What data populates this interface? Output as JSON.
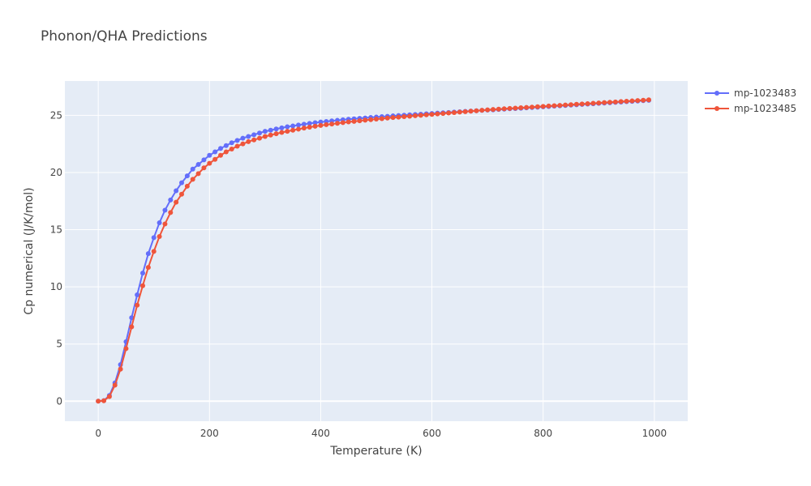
{
  "chart_data": {
    "type": "line",
    "title": "Phonon/QHA Predictions",
    "xlabel": "Temperature (K)",
    "ylabel": "Cp numerical (J/K/mol)",
    "xlim": [
      -60,
      1060
    ],
    "ylim": [
      -1.75,
      28
    ],
    "xticks": [
      0,
      200,
      400,
      600,
      800,
      1000
    ],
    "xtick_labels": [
      "0",
      "200",
      "400",
      "600",
      "800",
      "1000"
    ],
    "yticks": [
      0,
      5,
      10,
      15,
      20,
      25
    ],
    "ytick_labels": [
      "0",
      "5",
      "10",
      "15",
      "20",
      "25"
    ],
    "grid": true,
    "legend_position": "top-right",
    "x": [
      0,
      10,
      20,
      30,
      40,
      50,
      60,
      70,
      80,
      90,
      100,
      110,
      120,
      130,
      140,
      150,
      160,
      170,
      180,
      190,
      200,
      210,
      220,
      230,
      240,
      250,
      260,
      270,
      280,
      290,
      300,
      310,
      320,
      330,
      340,
      350,
      360,
      370,
      380,
      390,
      400,
      410,
      420,
      430,
      440,
      450,
      460,
      470,
      480,
      490,
      500,
      510,
      520,
      530,
      540,
      550,
      560,
      570,
      580,
      590,
      600,
      610,
      620,
      630,
      640,
      650,
      660,
      670,
      680,
      690,
      700,
      710,
      720,
      730,
      740,
      750,
      760,
      770,
      780,
      790,
      800,
      810,
      820,
      830,
      840,
      850,
      860,
      870,
      880,
      890,
      900,
      910,
      920,
      930,
      940,
      950,
      960,
      970,
      980,
      990
    ],
    "series": [
      {
        "name": "mp-1023483",
        "color": "#636efa",
        "values": [
          0,
          0.05,
          0.5,
          1.6,
          3.2,
          5.2,
          7.3,
          9.3,
          11.2,
          12.9,
          14.3,
          15.6,
          16.7,
          17.6,
          18.4,
          19.1,
          19.7,
          20.3,
          20.7,
          21.1,
          21.5,
          21.8,
          22.1,
          22.35,
          22.6,
          22.8,
          23.0,
          23.15,
          23.3,
          23.45,
          23.6,
          23.7,
          23.8,
          23.9,
          24.0,
          24.07,
          24.15,
          24.22,
          24.29,
          24.35,
          24.41,
          24.46,
          24.51,
          24.56,
          24.61,
          24.65,
          24.69,
          24.73,
          24.77,
          24.81,
          24.85,
          24.88,
          24.91,
          24.95,
          24.98,
          25.01,
          25.04,
          25.07,
          25.1,
          25.13,
          25.16,
          25.19,
          25.22,
          25.25,
          25.28,
          25.31,
          25.34,
          25.37,
          25.4,
          25.43,
          25.46,
          25.48,
          25.51,
          25.54,
          25.57,
          25.59,
          25.62,
          25.65,
          25.68,
          25.71,
          25.74,
          25.77,
          25.8,
          25.83,
          25.86,
          25.89,
          25.92,
          25.95,
          25.98,
          26.01,
          26.04,
          26.07,
          26.1,
          26.13,
          26.16,
          26.19,
          26.22,
          26.25,
          26.28,
          26.31
        ]
      },
      {
        "name": "mp-1023485",
        "color": "#ef553b",
        "values": [
          0,
          0.04,
          0.4,
          1.4,
          2.8,
          4.6,
          6.5,
          8.4,
          10.1,
          11.7,
          13.1,
          14.4,
          15.5,
          16.5,
          17.4,
          18.1,
          18.8,
          19.4,
          19.9,
          20.4,
          20.8,
          21.15,
          21.5,
          21.8,
          22.05,
          22.3,
          22.5,
          22.7,
          22.85,
          23.0,
          23.15,
          23.27,
          23.39,
          23.5,
          23.6,
          23.7,
          23.79,
          23.88,
          23.96,
          24.04,
          24.11,
          24.18,
          24.24,
          24.3,
          24.36,
          24.42,
          24.47,
          24.52,
          24.57,
          24.62,
          24.67,
          24.71,
          24.76,
          24.8,
          24.84,
          24.88,
          24.92,
          24.96,
          25.0,
          25.04,
          25.08,
          25.12,
          25.16,
          25.2,
          25.24,
          25.28,
          25.32,
          25.36,
          25.4,
          25.44,
          25.48,
          25.51,
          25.54,
          25.57,
          25.6,
          25.63,
          25.66,
          25.69,
          25.72,
          25.75,
          25.78,
          25.81,
          25.84,
          25.87,
          25.9,
          25.93,
          25.96,
          25.99,
          26.02,
          26.05,
          26.08,
          26.11,
          26.14,
          26.17,
          26.2,
          26.23,
          26.26,
          26.29,
          26.32,
          26.35
        ]
      }
    ]
  }
}
